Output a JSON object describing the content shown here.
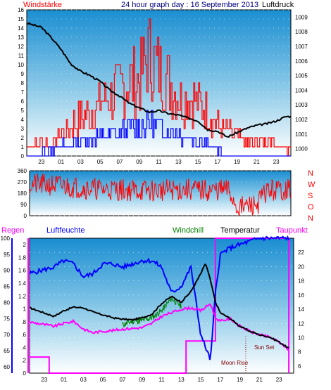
{
  "header": {
    "title": "24 hour graph day : 16 September 2013",
    "left_label": "Windstärke",
    "right_label": "Luftdruck"
  },
  "bottom_labels": {
    "regen": "Regen",
    "luftfeuchte": "Luftfeuchte",
    "windchill": "Windchill",
    "temperatur": "Temperatur",
    "taupunkt": "Taupunkt"
  },
  "compass": [
    "N",
    "W",
    "S",
    "O",
    "N"
  ],
  "annotations": {
    "sunset": "Sun Set",
    "moonrise": "Moon Rise"
  },
  "colors": {
    "wind_gust": "#ff0000",
    "wind_speed": "#0000ff",
    "pressure": "#000000",
    "direction": "#ff0000",
    "humidity": "#0000ff",
    "windchill": "#008000",
    "temperature": "#000000",
    "dewpoint": "#ff00ff",
    "rain": "#ff00ff",
    "regen_label": "#ff00ff",
    "luftfeuchte_label": "#0000ff",
    "windchill_label": "#008000",
    "taupunkt_label": "#ff00ff",
    "title_text": "#000080",
    "windstaerke_label": "#ff0000"
  },
  "chart_data": [
    {
      "name": "wind_pressure",
      "type": "line",
      "x_ticks": [
        "23",
        "01",
        "03",
        "05",
        "07",
        "09",
        "11",
        "13",
        "15",
        "17",
        "19",
        "21",
        "23"
      ],
      "x_range": [
        -2.5,
        24.5
      ],
      "y_left": {
        "label": "Windstärke",
        "range": [
          0,
          16
        ],
        "ticks": [
          0,
          1,
          2,
          3,
          4,
          5,
          6,
          7,
          8,
          9,
          10,
          11,
          12,
          13,
          14,
          15,
          16
        ]
      },
      "y_right": {
        "label": "Luftdruck",
        "range": [
          999.5,
          1009.5
        ],
        "ticks": [
          1000,
          1001,
          1002,
          1003,
          1004,
          1005,
          1006,
          1007,
          1008,
          1009
        ]
      },
      "pressure_points": [
        [
          -2.5,
          1008.6
        ],
        [
          -1,
          1008.3
        ],
        [
          0,
          1007.6
        ],
        [
          1,
          1006.8
        ],
        [
          2,
          1005.8
        ],
        [
          3,
          1005.3
        ],
        [
          4,
          1005.0
        ],
        [
          5,
          1004.6
        ],
        [
          6,
          1004.0
        ],
        [
          7,
          1003.6
        ],
        [
          8,
          1003.1
        ],
        [
          9,
          1002.8
        ],
        [
          10,
          1002.5
        ],
        [
          11,
          1002.6
        ],
        [
          12,
          1002.4
        ],
        [
          13,
          1002.3
        ],
        [
          14,
          1002.1
        ],
        [
          15,
          1001.9
        ],
        [
          16,
          1001.3
        ],
        [
          17,
          1001.2
        ],
        [
          18,
          1000.8
        ],
        [
          19,
          1001.1
        ],
        [
          20,
          1001.4
        ],
        [
          21,
          1001.6
        ],
        [
          22,
          1001.7
        ],
        [
          23,
          1001.9
        ],
        [
          24,
          1002.2
        ]
      ],
      "gust_envelope": [
        [
          -2.5,
          2
        ],
        [
          0,
          2
        ],
        [
          2,
          5
        ],
        [
          4,
          7
        ],
        [
          6,
          10
        ],
        [
          8,
          12
        ],
        [
          9,
          13
        ],
        [
          10,
          16
        ],
        [
          11,
          14
        ],
        [
          12,
          12
        ],
        [
          13,
          10
        ],
        [
          14,
          9
        ],
        [
          15,
          9
        ],
        [
          16,
          7
        ],
        [
          17,
          5
        ],
        [
          18,
          4
        ],
        [
          19,
          3
        ],
        [
          20,
          2
        ],
        [
          21,
          2
        ],
        [
          22,
          3
        ],
        [
          23,
          2
        ],
        [
          24,
          1
        ]
      ],
      "speed_envelope": [
        [
          -2.5,
          0
        ],
        [
          0,
          1
        ],
        [
          2,
          2
        ],
        [
          4,
          3
        ],
        [
          6,
          3
        ],
        [
          8,
          4
        ],
        [
          10,
          5
        ],
        [
          12,
          4
        ],
        [
          14,
          3
        ],
        [
          16,
          2
        ],
        [
          17,
          1
        ],
        [
          18,
          0
        ],
        [
          24,
          0
        ]
      ]
    },
    {
      "name": "wind_direction",
      "type": "line",
      "y_range": [
        0,
        360
      ],
      "y_ticks": [
        0,
        90,
        180,
        270,
        360
      ],
      "y_tick_labels": [
        "0",
        "90",
        "180",
        "270",
        "360"
      ],
      "base_points": [
        [
          -2.5,
          250
        ],
        [
          0,
          245
        ],
        [
          2,
          230
        ],
        [
          4,
          215
        ],
        [
          6,
          210
        ],
        [
          8,
          205
        ],
        [
          10,
          200
        ],
        [
          12,
          205
        ],
        [
          14,
          210
        ],
        [
          16,
          200
        ],
        [
          18,
          210
        ],
        [
          19,
          60
        ],
        [
          21,
          90
        ],
        [
          22,
          200
        ],
        [
          24,
          210
        ]
      ],
      "spread": 90
    },
    {
      "name": "temp_humidity",
      "type": "line",
      "x_ticks": [
        "23",
        "01",
        "03",
        "05",
        "07",
        "09",
        "11",
        "13",
        "15",
        "17",
        "19",
        "21",
        "23"
      ],
      "humidity_axis": {
        "range": [
          58,
          100
        ],
        "ticks": [
          60,
          65,
          70,
          75,
          80,
          85,
          90,
          95,
          100
        ]
      },
      "rain_axis": {
        "range": [
          0,
          2.1
        ],
        "ticks": [
          0,
          0.2,
          0.4,
          0.6,
          0.8,
          1,
          1.2,
          1.4,
          1.6,
          1.8,
          2
        ],
        "tick_labels": [
          "0",
          ".2",
          ".4",
          ".6",
          ".8",
          "1",
          "1.2",
          "1.4",
          "1.6",
          "1.8",
          "2"
        ]
      },
      "temp_axis": {
        "range": [
          5,
          24
        ],
        "ticks": [
          6,
          8,
          10,
          12,
          14,
          16,
          18,
          20,
          22
        ]
      },
      "humidity": [
        [
          -2.5,
          89
        ],
        [
          0,
          91
        ],
        [
          1,
          93
        ],
        [
          2,
          92
        ],
        [
          3,
          88
        ],
        [
          4,
          89
        ],
        [
          5,
          92
        ],
        [
          6,
          92
        ],
        [
          7,
          91
        ],
        [
          8,
          92
        ],
        [
          9,
          93
        ],
        [
          10,
          93
        ],
        [
          11,
          91
        ],
        [
          12,
          83
        ],
        [
          13,
          85
        ],
        [
          14,
          91
        ],
        [
          15,
          70
        ],
        [
          16,
          62
        ],
        [
          16.5,
          83
        ],
        [
          17,
          95
        ],
        [
          18,
          97
        ],
        [
          19,
          98
        ],
        [
          20,
          99
        ],
        [
          21,
          100
        ],
        [
          24,
          100
        ]
      ],
      "temperature": [
        [
          -2.5,
          14.2
        ],
        [
          0,
          13.0
        ],
        [
          1,
          13.8
        ],
        [
          2,
          14.3
        ],
        [
          3,
          14.2
        ],
        [
          4,
          13.6
        ],
        [
          5,
          13.2
        ],
        [
          6,
          12.8
        ],
        [
          7,
          12.6
        ],
        [
          8,
          12.5
        ],
        [
          9,
          12.8
        ],
        [
          10,
          13.3
        ],
        [
          11,
          14.8
        ],
        [
          12,
          15.8
        ],
        [
          13,
          15.0
        ],
        [
          14,
          16.5
        ],
        [
          15,
          19.0
        ],
        [
          15.5,
          20.5
        ],
        [
          16,
          18.0
        ],
        [
          16.5,
          15.0
        ],
        [
          17,
          13.5
        ],
        [
          18,
          12.7
        ],
        [
          19,
          11.6
        ],
        [
          20,
          10.9
        ],
        [
          21,
          10.4
        ],
        [
          22,
          10.1
        ],
        [
          23,
          9.4
        ],
        [
          24,
          8.5
        ]
      ],
      "windchill": [
        [
          7,
          11.8
        ],
        [
          8,
          12.3
        ],
        [
          9,
          12.4
        ],
        [
          10,
          12.8
        ],
        [
          11,
          13.8
        ],
        [
          12,
          15.5
        ],
        [
          13,
          14.5
        ]
      ],
      "dewpoint": [
        [
          -2.5,
          12.2
        ],
        [
          0,
          11.6
        ],
        [
          1,
          12.0
        ],
        [
          2,
          12.3
        ],
        [
          3,
          11.2
        ],
        [
          4,
          10.7
        ],
        [
          5,
          10.9
        ],
        [
          6,
          11.0
        ],
        [
          7,
          11.2
        ],
        [
          8,
          11.3
        ],
        [
          9,
          11.4
        ],
        [
          10,
          12.0
        ],
        [
          11,
          13.0
        ],
        [
          12,
          13.5
        ],
        [
          13,
          14.0
        ],
        [
          14,
          14.2
        ],
        [
          15,
          13.8
        ],
        [
          16,
          14.8
        ],
        [
          16.5,
          12.8
        ],
        [
          17,
          12.3
        ],
        [
          18,
          12.7
        ],
        [
          19,
          11.6
        ],
        [
          20,
          10.9
        ],
        [
          21,
          10.4
        ],
        [
          22,
          10.1
        ],
        [
          23,
          9.4
        ],
        [
          24,
          8.3
        ]
      ],
      "rain": [
        [
          -2.5,
          0.25
        ],
        [
          -0.5,
          0.25
        ],
        [
          -0.5,
          0
        ],
        [
          13.5,
          0
        ],
        [
          13.5,
          0.5
        ],
        [
          16.5,
          0.5
        ],
        [
          16.5,
          2.1
        ],
        [
          24,
          2.1
        ],
        [
          24,
          0
        ]
      ],
      "sunset_hour": 19.6,
      "moonrise_hour": 19.1
    }
  ]
}
